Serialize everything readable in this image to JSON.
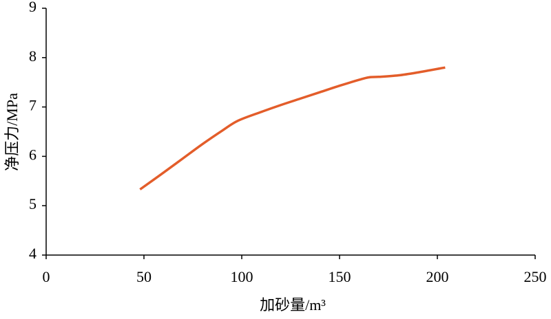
{
  "chart_data": {
    "type": "line",
    "x_label": "加砂量/m³",
    "y_label": "净压力/MPa",
    "x": [
      48,
      60,
      70,
      80,
      90,
      98,
      110,
      120,
      130,
      140,
      150,
      160,
      165,
      170,
      180,
      190,
      204
    ],
    "series": [
      {
        "name": "净压力",
        "color": "#e35d2a",
        "values": [
          5.33,
          5.67,
          5.96,
          6.25,
          6.52,
          6.72,
          6.9,
          7.04,
          7.17,
          7.3,
          7.43,
          7.55,
          7.6,
          7.61,
          7.64,
          7.7,
          7.8
        ]
      }
    ],
    "xlim": [
      0,
      250
    ],
    "xticks": [
      0,
      50,
      100,
      150,
      200,
      250
    ],
    "ylim": [
      4,
      9
    ],
    "yticks": [
      4,
      5,
      6,
      7,
      8,
      9
    ],
    "grid": false,
    "legend": false
  }
}
